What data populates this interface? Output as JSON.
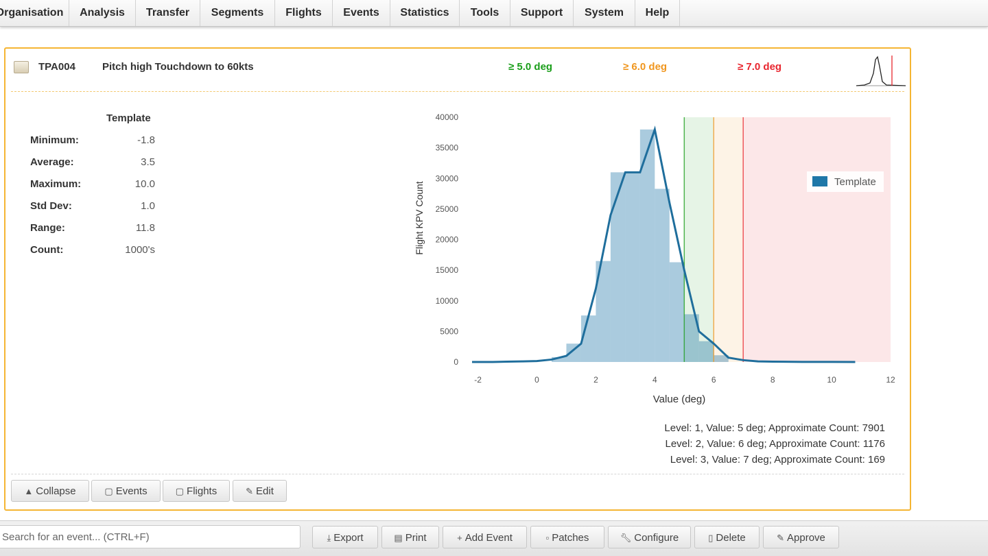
{
  "nav": {
    "items": [
      "Organisation",
      "Analysis",
      "Transfer",
      "Segments",
      "Flights",
      "Events",
      "Statistics",
      "Tools",
      "Support",
      "System",
      "Help"
    ]
  },
  "kpv": {
    "code": "TPA004",
    "title": "Pitch high Touchdown to 60kts",
    "thresholds": [
      {
        "label": "≥ 5.0 deg",
        "color": "#1a9e1a"
      },
      {
        "label": "≥ 6.0 deg",
        "color": "#f0961e"
      },
      {
        "label": "≥ 7.0 deg",
        "color": "#e8252e"
      }
    ]
  },
  "stats": {
    "header": "Template",
    "rows": [
      {
        "label": "Minimum:",
        "value": "-1.8"
      },
      {
        "label": "Average:",
        "value": "3.5"
      },
      {
        "label": "Maximum:",
        "value": "10.0"
      },
      {
        "label": "Std Dev:",
        "value": "1.0"
      },
      {
        "label": "Range:",
        "value": "11.8"
      },
      {
        "label": "Count:",
        "value": "1000's"
      }
    ]
  },
  "chart_data": {
    "type": "bar",
    "xlabel": "Value (deg)",
    "ylabel": "Flight KPV Count",
    "xlim": [
      -2.2,
      12
    ],
    "ylim": [
      0,
      40000
    ],
    "xticks": [
      -2,
      0,
      2,
      4,
      6,
      8,
      10,
      12
    ],
    "yticks": [
      0,
      5000,
      10000,
      15000,
      20000,
      25000,
      30000,
      35000,
      40000
    ],
    "legend": {
      "position": "top-right",
      "entries": [
        "Template"
      ]
    },
    "series": [
      {
        "name": "Template",
        "color": "#1f77a8",
        "bars": {
          "bin_width": 0.5,
          "x": [
            0.75,
            1.25,
            1.75,
            2.25,
            2.75,
            3.25,
            3.75,
            4.25,
            4.75,
            5.25,
            5.75,
            6.25
          ],
          "values": [
            800,
            3000,
            7600,
            16500,
            31000,
            31000,
            38000,
            28300,
            16300,
            7800,
            3400,
            1100
          ]
        },
        "line": {
          "x": [
            -2.2,
            -1.5,
            -1.0,
            -0.5,
            0.0,
            0.5,
            1.0,
            1.5,
            2.0,
            2.5,
            3.0,
            3.5,
            4.0,
            4.5,
            5.0,
            5.5,
            6.0,
            6.5,
            7.0,
            7.5,
            8.0,
            9.0,
            10.0,
            10.8
          ],
          "y": [
            0,
            0,
            50,
            100,
            150,
            400,
            1000,
            3000,
            12000,
            24000,
            31000,
            31000,
            38000,
            26000,
            15000,
            5000,
            3000,
            700,
            300,
            100,
            50,
            20,
            10,
            0
          ]
        }
      }
    ],
    "threshold_zones": [
      {
        "from": 5,
        "to": 6,
        "color": "#1a9e1a"
      },
      {
        "from": 6,
        "to": 7,
        "color": "#f0961e"
      },
      {
        "from": 7,
        "to": 12,
        "color": "#e8252e"
      }
    ],
    "level_notes": [
      "Level: 1, Value: 5 deg; Approximate Count: 7901",
      "Level: 2, Value: 6 deg; Approximate Count: 1176",
      "Level: 3, Value: 7 deg; Approximate Count: 169"
    ]
  },
  "panel_actions": {
    "collapse": "Collapse",
    "events": "Events",
    "flights": "Flights",
    "edit": "Edit"
  },
  "bottombar": {
    "search_placeholder": "Search for an event... (CTRL+F)",
    "buttons": {
      "export": "Export",
      "print": "Print",
      "add_event": "Add Event",
      "patches": "Patches",
      "configure": "Configure",
      "delete": "Delete",
      "approve": "Approve"
    }
  }
}
